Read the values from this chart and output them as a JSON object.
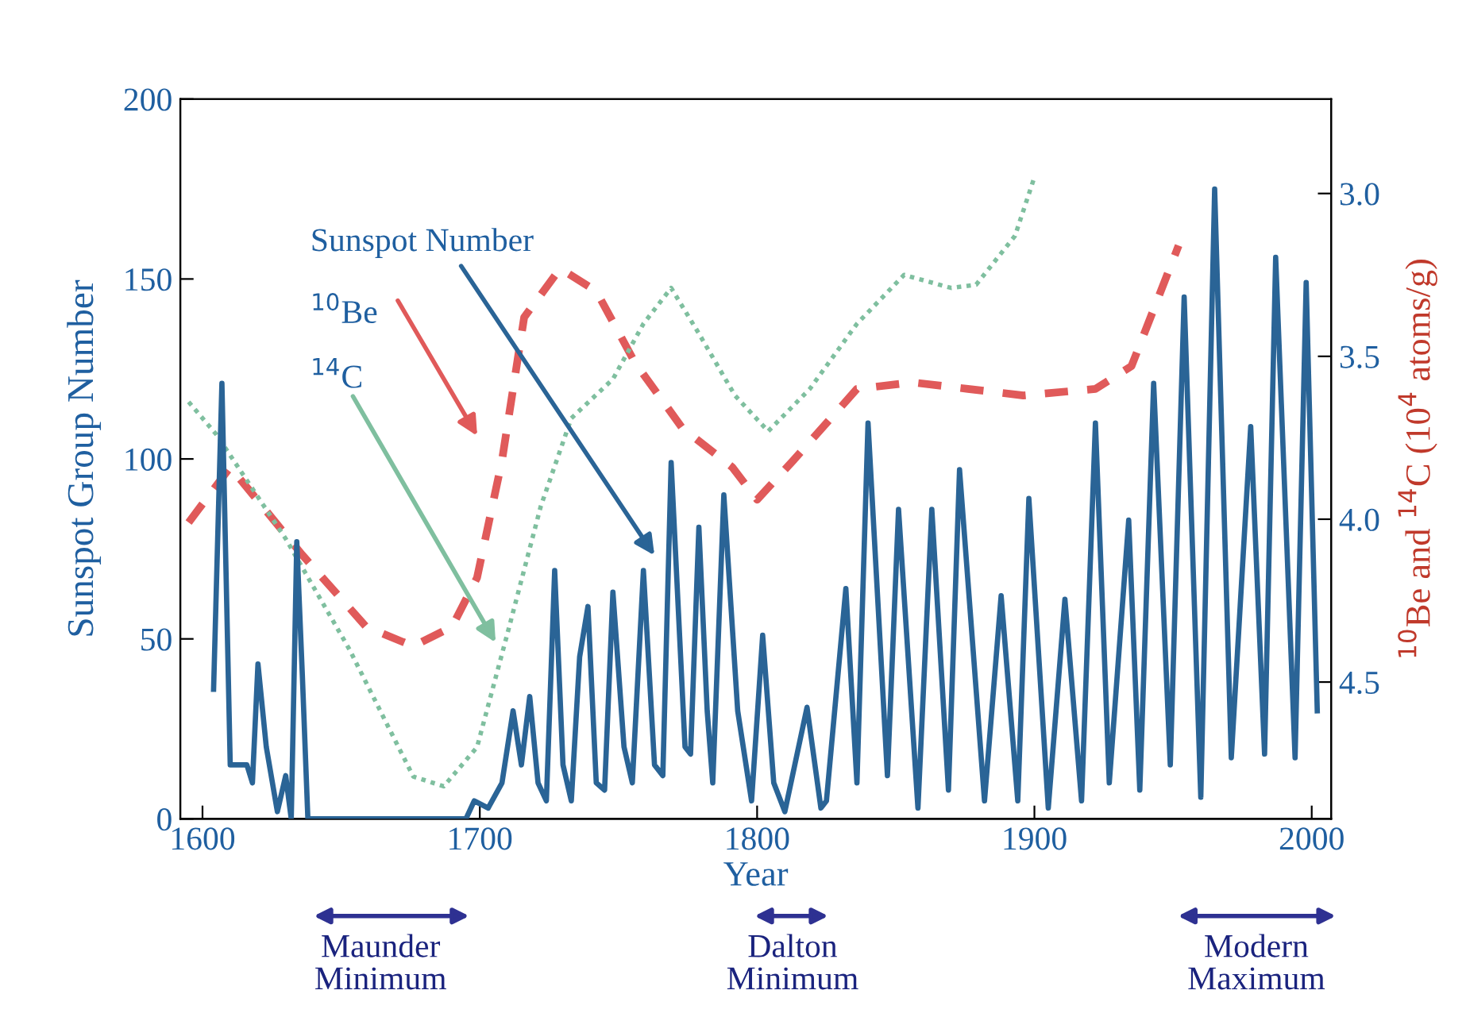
{
  "chart_data": {
    "type": "line",
    "xlabel": "Year",
    "ylabel": "Sunspot Group Number",
    "y2label": "$^{10}$Be and $^{14}$C (10$^{4}$ atoms/g)",
    "xlim": [
      1592,
      2007
    ],
    "xticks": [
      1600,
      1700,
      1800,
      1900,
      2000
    ],
    "ylim": [
      0,
      200
    ],
    "yticks": [
      0,
      50,
      100,
      150,
      200
    ],
    "y2lim": [
      4.92,
      2.71
    ],
    "y2ticks": [
      {
        "value": 3.0,
        "label": "3.0"
      },
      {
        "value": 3.5,
        "label": "3.5"
      },
      {
        "value": 4.0,
        "label": "4.0"
      },
      {
        "value": 4.5,
        "label": "4.5"
      }
    ],
    "grid": false,
    "series": [
      {
        "color": "#2a6496",
        "line_style": "solid",
        "x": [
          1604,
          1607,
          1610,
          1612,
          1616,
          1618,
          1620,
          1623,
          1627,
          1630,
          1632,
          1634,
          1636,
          1638,
          1645,
          1660,
          1680,
          1695,
          1698,
          1703,
          1708,
          1712,
          1715,
          1718,
          1721,
          1724,
          1727,
          1730,
          1733,
          1736,
          1739,
          1742,
          1745,
          1748,
          1752,
          1755,
          1759,
          1763,
          1766,
          1769,
          1774,
          1776,
          1779,
          1782,
          1784,
          1788,
          1793,
          1798,
          1802,
          1806,
          1810,
          1818,
          1823,
          1825,
          1832,
          1836,
          1840,
          1847,
          1851,
          1858,
          1863,
          1869,
          1873,
          1882,
          1888,
          1894,
          1898,
          1905,
          1911,
          1917,
          1922,
          1927,
          1934,
          1938,
          1943,
          1949,
          1954,
          1960,
          1965,
          1971,
          1978,
          1983,
          1987,
          1994,
          1998,
          2002
        ],
        "values": [
          36,
          121,
          15,
          15,
          15,
          10,
          43,
          20,
          2,
          12,
          0,
          77,
          40,
          0,
          0,
          0,
          0,
          0,
          5,
          3,
          10,
          30,
          15,
          34,
          10,
          5,
          69,
          15,
          5,
          45,
          59,
          10,
          8,
          63,
          20,
          10,
          69,
          15,
          12,
          99,
          20,
          18,
          81,
          30,
          10,
          90,
          30,
          5,
          51,
          10,
          2,
          31,
          3,
          5,
          64,
          10,
          110,
          12,
          86,
          3,
          86,
          8,
          97,
          5,
          62,
          5,
          89,
          3,
          61,
          5,
          110,
          10,
          83,
          8,
          121,
          15,
          145,
          6,
          175,
          17,
          109,
          18,
          156,
          17,
          149,
          30
        ]
      },
      {
        "color": "#e05a5a",
        "line_style": "dashed",
        "axis": "y2",
        "x": [
          1595,
          1610,
          1636,
          1659,
          1676,
          1690,
          1699,
          1708,
          1716,
          1729,
          1742,
          1756,
          1773,
          1791,
          1800,
          1813,
          1836,
          1856,
          1876,
          1896,
          1922,
          1935,
          1952
        ],
        "values": [
          4.01,
          3.84,
          4.11,
          4.33,
          4.39,
          4.33,
          4.18,
          3.82,
          3.38,
          3.23,
          3.3,
          3.52,
          3.72,
          3.84,
          3.94,
          3.82,
          3.6,
          3.58,
          3.6,
          3.62,
          3.6,
          3.53,
          3.16
        ]
      },
      {
        "color": "#7fbf9f",
        "line_style": "dotted",
        "axis": "y2",
        "x": [
          1595,
          1605,
          1630,
          1653,
          1676,
          1687,
          1699,
          1710,
          1722,
          1733,
          1748,
          1759,
          1769,
          1779,
          1792,
          1804,
          1819,
          1836,
          1853,
          1870,
          1879,
          1893,
          1900
        ],
        "values": [
          3.64,
          3.74,
          4.06,
          4.4,
          4.79,
          4.82,
          4.7,
          4.35,
          3.96,
          3.69,
          3.57,
          3.4,
          3.29,
          3.43,
          3.62,
          3.73,
          3.6,
          3.4,
          3.25,
          3.29,
          3.28,
          3.13,
          2.95
        ]
      }
    ],
    "annotations": [
      "Sunspot Number",
      "$^{10}$Be",
      "$^{14}$C",
      "Maunder\nMinimum",
      "Dalton\nMinimum",
      "Modern\nMaximum"
    ]
  }
}
